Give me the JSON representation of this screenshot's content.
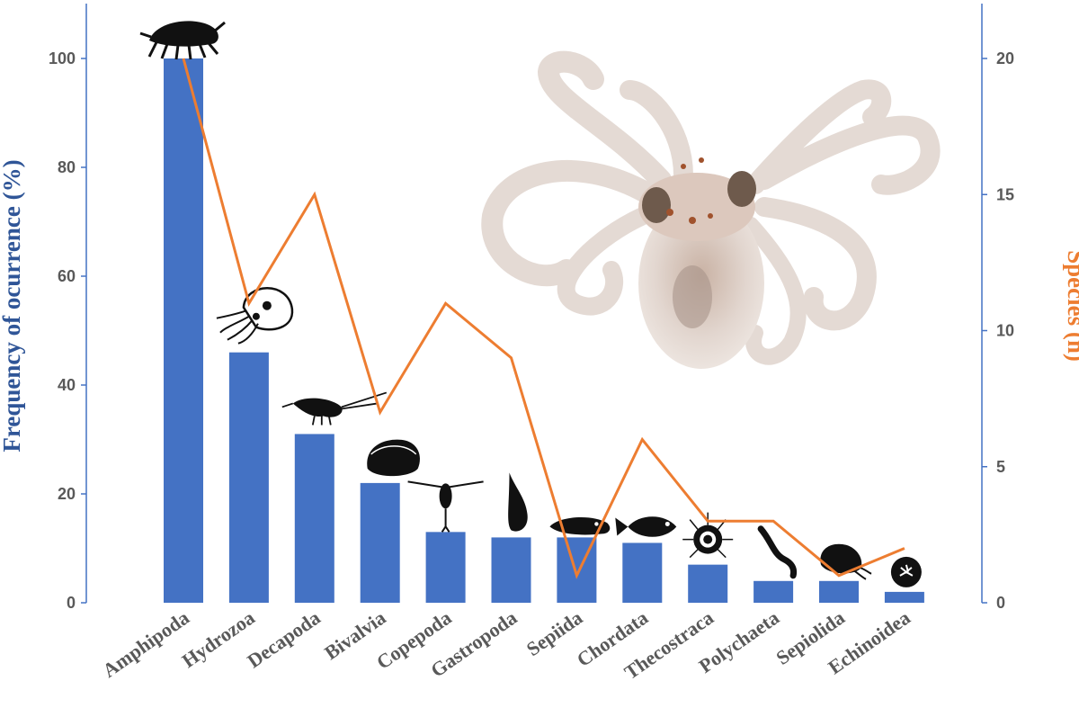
{
  "chart_data": {
    "type": "bar+line",
    "categories": [
      "Amphipoda",
      "Hydrozoa",
      "Decapoda",
      "Bivalvia",
      "Copepoda",
      "Gastropoda",
      "Sepiida",
      "Chordata",
      "Thecostraca",
      "Polychaeta",
      "Sepiolida",
      "Echinoidea"
    ],
    "series": [
      {
        "name": "",
        "type": "bar",
        "axis": "left",
        "color": "#4472c4",
        "values": [
          100,
          46,
          31,
          22,
          13,
          12,
          12,
          11,
          7,
          4,
          4,
          2
        ]
      },
      {
        "name": "",
        "type": "line",
        "axis": "right",
        "color": "#ed7d31",
        "values": [
          20,
          11,
          15,
          7,
          11,
          9,
          1,
          6,
          3,
          3,
          1,
          2
        ]
      }
    ],
    "ylabel": "Frequency of ocurrence (%)",
    "ylabel_color": "#2f5597",
    "y2label": "Species (n)",
    "y2label_color": "#ed7d31",
    "ylim": [
      0,
      100
    ],
    "y2lim": [
      0,
      20
    ],
    "yticks": [
      0,
      20,
      40,
      60,
      80,
      100
    ],
    "y2ticks": [
      0,
      5,
      10,
      15,
      20
    ],
    "grid": false,
    "axis_color": "#4472c4",
    "icons": [
      "amphipod-icon",
      "jellyfish-icon",
      "shrimp-icon",
      "clam-icon",
      "copepod-icon",
      "snail-icon",
      "cuttlefish-icon",
      "fish-icon",
      "barnacle-icon",
      "worm-icon",
      "bobtail-squid-icon",
      "sand-dollar-icon"
    ],
    "inset_image": "octopus-photo"
  }
}
